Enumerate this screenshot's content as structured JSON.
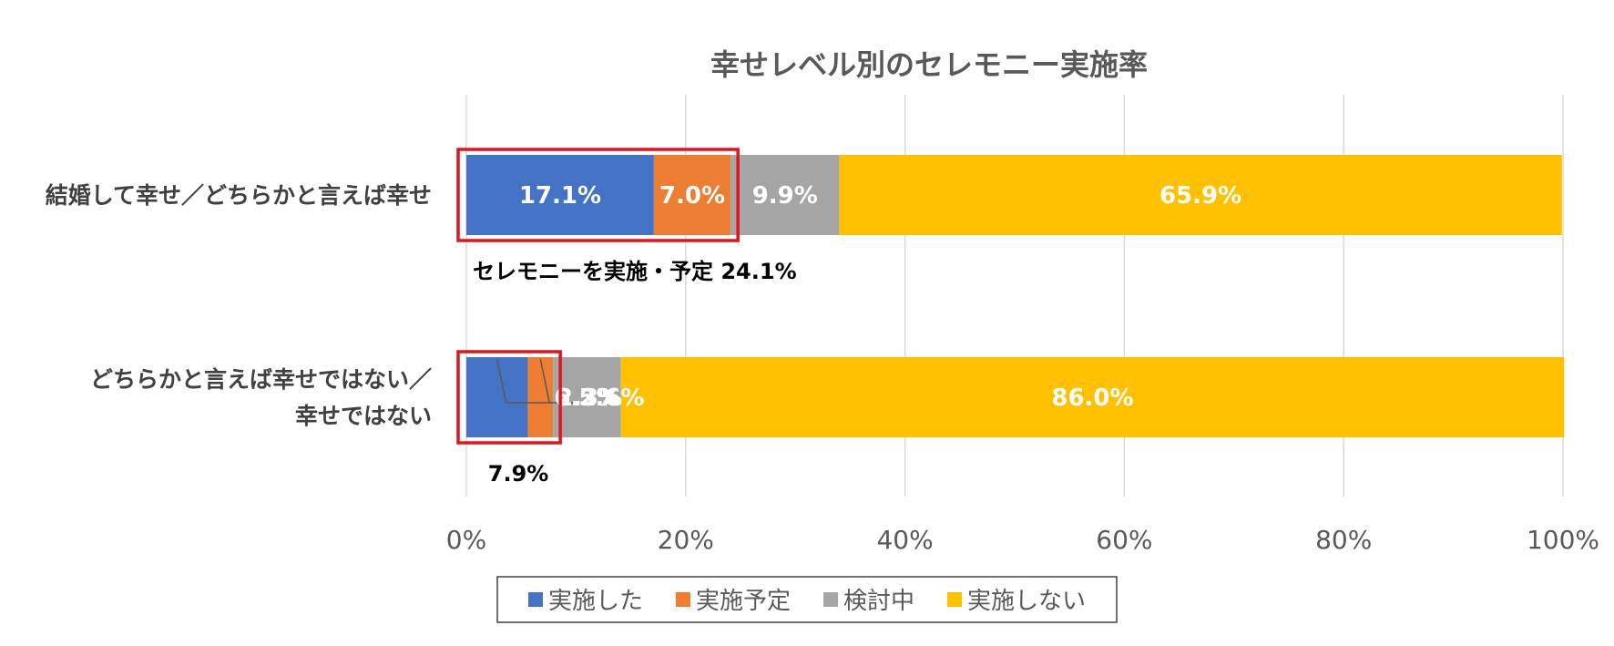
{
  "chart_data": {
    "type": "bar",
    "orientation": "horizontal",
    "stacked": true,
    "title": "幸せレベル別のセレモニー実施率",
    "categories": [
      [
        "結婚して幸せ／どちらかと言えば幸せ"
      ],
      [
        "どちらかと言えば幸せではない／",
        "幸せではない"
      ]
    ],
    "series": [
      {
        "name": "実施した",
        "color": "#4472C4",
        "values": [
          17.1,
          5.6
        ],
        "labels": [
          "17.1%",
          "5.6%"
        ]
      },
      {
        "name": "実施予定",
        "color": "#ED7D31",
        "values": [
          7.0,
          2.3
        ],
        "labels": [
          "7.0%",
          "2.3%"
        ]
      },
      {
        "name": "検討中",
        "color": "#A5A5A5",
        "values": [
          9.9,
          6.2
        ],
        "labels": [
          "9.9%",
          "6.2%"
        ]
      },
      {
        "name": "実施しない",
        "color": "#FFC000",
        "values": [
          65.9,
          86.0
        ],
        "labels": [
          "65.9%",
          "86.0%"
        ]
      }
    ],
    "xlim": [
      0,
      100
    ],
    "xticks": [
      "0%",
      "20%",
      "40%",
      "60%",
      "80%",
      "100%"
    ],
    "grid": true,
    "legend": "bottom",
    "annotations": [
      {
        "category_index": 0,
        "text": "セレモニーを実施・予定 24.1%",
        "value": 24.1
      },
      {
        "category_index": 1,
        "text": "7.9%",
        "value": 7.9
      }
    ],
    "highlight_color": "#E0141E"
  }
}
